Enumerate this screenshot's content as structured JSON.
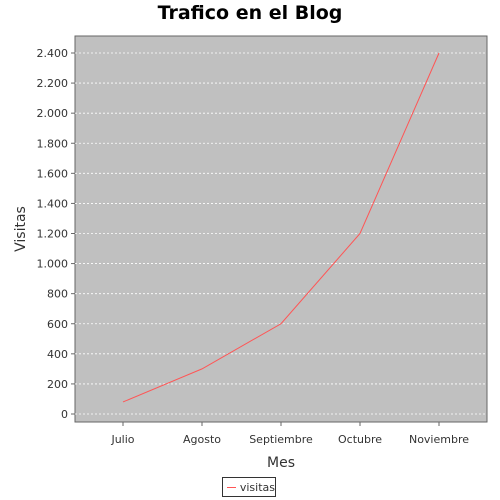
{
  "chart_data": {
    "type": "line",
    "title": "Trafico en el Blog",
    "xlabel": "Mes",
    "ylabel": "Visitas",
    "categories": [
      "Julio",
      "Agosto",
      "Septiembre",
      "Octubre",
      "Noviembre"
    ],
    "series": [
      {
        "name": "visitas",
        "values": [
          80,
          300,
          600,
          1200,
          2400
        ]
      }
    ],
    "ylim": [
      0,
      2500
    ],
    "yticks": [
      0,
      200,
      400,
      600,
      800,
      1000,
      1200,
      1400,
      1600,
      1800,
      2000,
      2200,
      2400
    ],
    "ytick_labels": [
      "0",
      "200",
      "400",
      "600",
      "800",
      "1.000",
      "1.200",
      "1.400",
      "1.600",
      "1.800",
      "2.000",
      "2.200",
      "2.400"
    ],
    "grid": true,
    "legend_position": "bottom",
    "colors": {
      "plot_background": "#c0c0c0",
      "series": "#ff5555",
      "grid": "#ffffff"
    }
  }
}
